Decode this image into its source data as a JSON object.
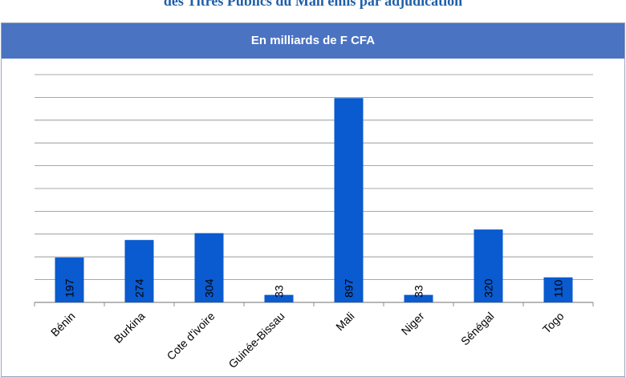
{
  "page": {
    "title": "des Titres Publics du Mali émis par adjudication",
    "banner": "En milliards de F CFA"
  },
  "colors": {
    "bar": "#0a5ad0",
    "grid": "#8c8c8c",
    "banner": "#4a73c2",
    "title": "#1f5fa8"
  },
  "chart_data": {
    "type": "bar",
    "title": "En milliards de F CFA",
    "categories": [
      "Bénin",
      "Burkina",
      "Cote d'ivoire",
      "Guinée-Bissau",
      "Mali",
      "Niger",
      "Sénégal",
      "Togo"
    ],
    "values": [
      197,
      274,
      304,
      33,
      897,
      33,
      320,
      110
    ],
    "data_labels": [
      "197",
      "274",
      "304",
      "33",
      "897",
      "33",
      "320",
      "110"
    ],
    "xlabel": "",
    "ylabel": "",
    "ylim": [
      0,
      1000
    ],
    "grid": true,
    "y_ticks_shown": false,
    "legend": "none"
  }
}
